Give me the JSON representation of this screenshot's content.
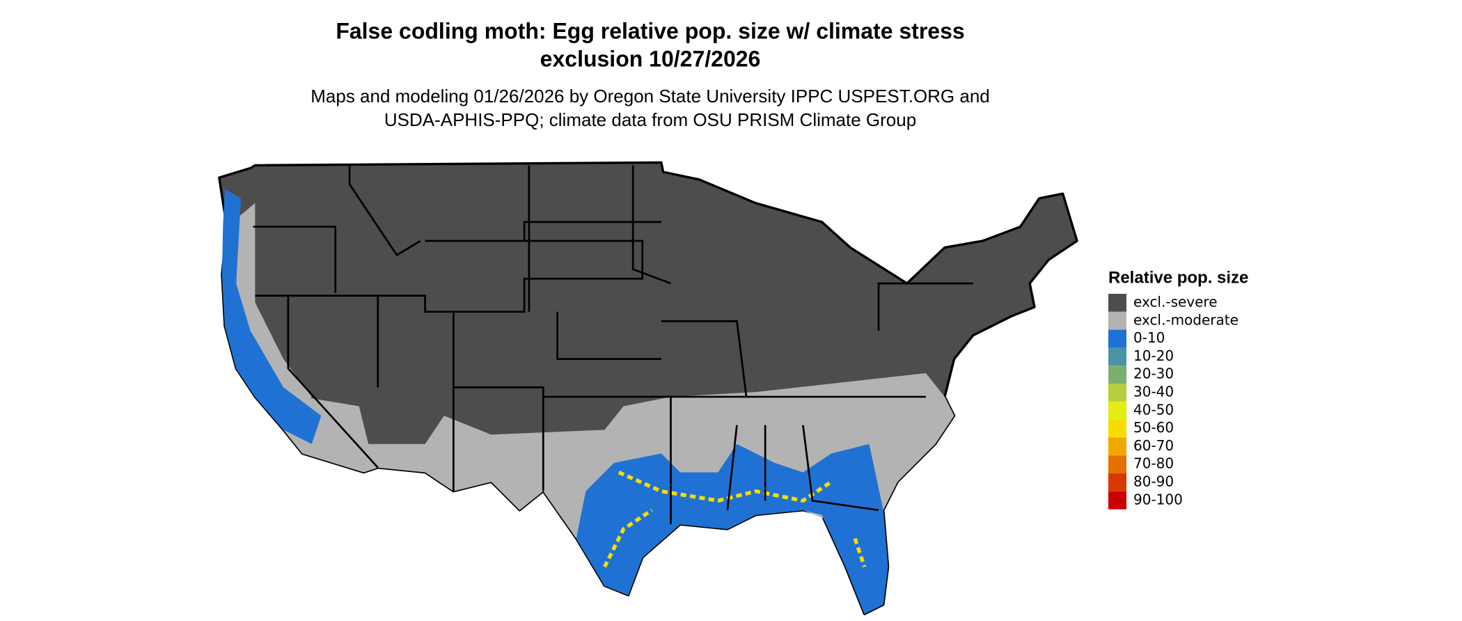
{
  "title": [
    "False codling moth: Egg relative pop. size w/ climate stress",
    "exclusion 10/27/2026"
  ],
  "subtitle": [
    "Maps and modeling 01/26/2026 by Oregon State University IPPC USPEST.ORG and",
    "USDA-APHIS-PPQ; climate data from OSU PRISM Climate Group"
  ],
  "legend": {
    "title": "Relative pop. size",
    "items": [
      {
        "label": "excl.-severe",
        "color": "#4d4d4d"
      },
      {
        "label": "excl.-moderate",
        "color": "#b3b3b3"
      },
      {
        "label": "0-10",
        "color": "#1f72d4"
      },
      {
        "label": "10-20",
        "color": "#4a93a4"
      },
      {
        "label": "20-30",
        "color": "#7cae6e"
      },
      {
        "label": "30-40",
        "color": "#b5cf3e"
      },
      {
        "label": "40-50",
        "color": "#e4ec13"
      },
      {
        "label": "50-60",
        "color": "#f7dc00"
      },
      {
        "label": "60-70",
        "color": "#f0a800"
      },
      {
        "label": "70-80",
        "color": "#e67000"
      },
      {
        "label": "80-90",
        "color": "#d93800"
      },
      {
        "label": "90-100",
        "color": "#cc0000"
      }
    ]
  }
}
